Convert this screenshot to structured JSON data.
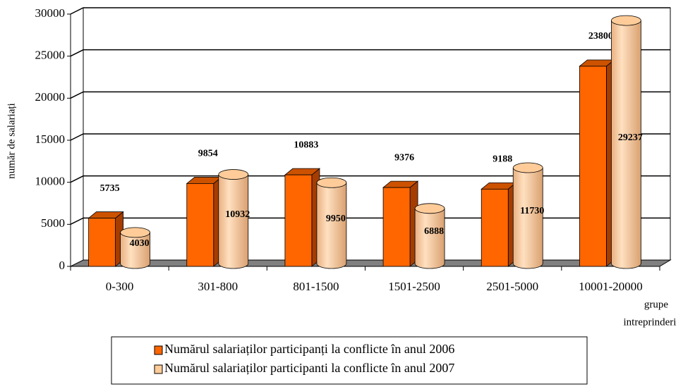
{
  "chart_data": {
    "type": "bar3d",
    "y_label": "număr de salariați",
    "x_label": [
      "grupe",
      "intreprinderi"
    ],
    "categories": [
      "0-300",
      "301-800",
      "801-1500",
      "1501-2500",
      "2501-5000",
      "10001-20000"
    ],
    "series": [
      {
        "name": "Numărul salariaților participanți la conflicte în anul 2006",
        "color": "#ff6600",
        "values": [
          5735,
          9854,
          10883,
          9376,
          9188,
          23800
        ]
      },
      {
        "name": "Numărul salariaților participanti la conflicte în anul 2007",
        "color": "#ffcc99",
        "values": [
          4030,
          10932,
          9950,
          6888,
          11730,
          29237
        ]
      }
    ],
    "ylim": [
      0,
      30000
    ],
    "yticks": [
      0,
      5000,
      10000,
      15000,
      20000,
      25000,
      30000
    ],
    "grid": true
  }
}
